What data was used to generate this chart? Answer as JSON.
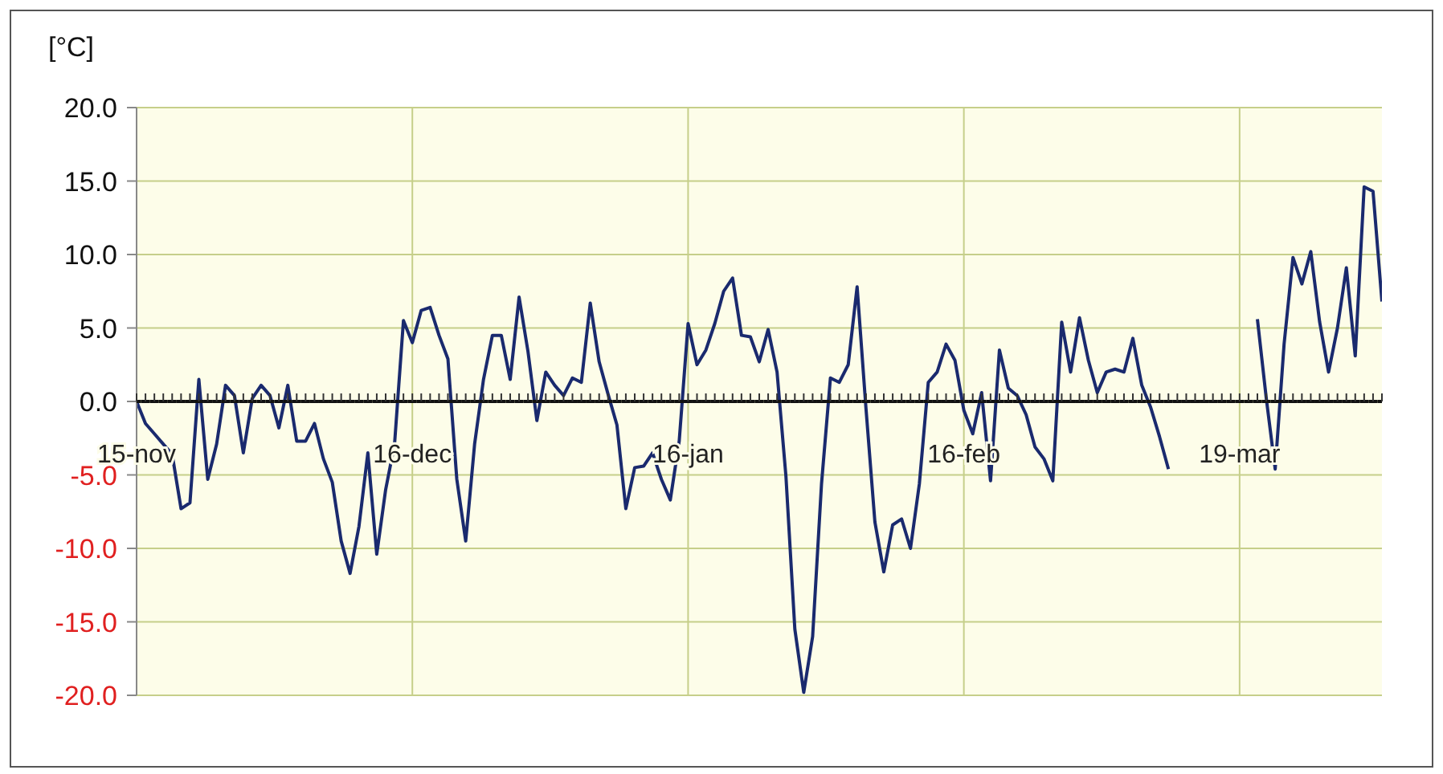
{
  "chart_data": {
    "type": "line",
    "ylabel": "[°C]",
    "categories": [
      "15-nov",
      null,
      null,
      null,
      null,
      null,
      null,
      null,
      null,
      null,
      null,
      null,
      null,
      null,
      null,
      null,
      null,
      null,
      null,
      null,
      null,
      null,
      null,
      null,
      null,
      null,
      null,
      null,
      null,
      null,
      null,
      "16-dec",
      null,
      null,
      null,
      null,
      null,
      null,
      null,
      null,
      null,
      null,
      null,
      null,
      null,
      null,
      null,
      null,
      null,
      null,
      null,
      null,
      null,
      null,
      null,
      null,
      null,
      null,
      null,
      null,
      null,
      null,
      "16-jan",
      null,
      null,
      null,
      null,
      null,
      null,
      null,
      null,
      null,
      null,
      null,
      null,
      null,
      null,
      null,
      null,
      null,
      null,
      null,
      null,
      null,
      null,
      null,
      null,
      null,
      null,
      null,
      null,
      null,
      null,
      "16-feb",
      null,
      null,
      null,
      null,
      null,
      null,
      null,
      null,
      null,
      null,
      null,
      null,
      null,
      null,
      null,
      null,
      null,
      null,
      null,
      null,
      null,
      null,
      null,
      null,
      null,
      null,
      null,
      null,
      null,
      null,
      "19-mar",
      null,
      null,
      null,
      null,
      null,
      null,
      null,
      null,
      null,
      null,
      null,
      null,
      null,
      null,
      null,
      null
    ],
    "series": [
      {
        "color": "#1a2a6e",
        "values": [
          0,
          -1.5,
          -2.2,
          -2.9,
          -3.6,
          -7.3,
          -6.9,
          1.5,
          -5.3,
          -2.9,
          1.1,
          0.4,
          -3.5,
          0.2,
          1.1,
          0.4,
          -1.8,
          1.1,
          -2.7,
          -2.7,
          -1.5,
          -3.9,
          -5.5,
          -9.5,
          -11.7,
          -8.5,
          -3.5,
          -10.4,
          -6,
          -2.9,
          5.5,
          4,
          6.2,
          6.4,
          4.5,
          2.9,
          -5.3,
          -9.5,
          -2.9,
          1.5,
          4.5,
          4.5,
          1.5,
          7.1,
          3.4,
          -1.3,
          2,
          1.1,
          0.4,
          1.6,
          1.3,
          6.7,
          2.7,
          0.5,
          -1.6,
          -7.3,
          -4.5,
          -4.4,
          -3.5,
          -5.3,
          -6.7,
          -2.7,
          5.3,
          2.5,
          3.5,
          5.3,
          7.5,
          8.4,
          4.5,
          4.4,
          2.7,
          4.9,
          2,
          -5.1,
          -15.5,
          -19.8,
          -16,
          -5.6,
          1.6,
          1.3,
          2.5,
          7.8,
          -0.5,
          -8.2,
          -11.6,
          -8.4,
          -8,
          -10,
          -5.6,
          1.3,
          2,
          3.9,
          2.8,
          -0.6,
          -2.2,
          0.6,
          -5.4,
          3.5,
          0.9,
          0.4,
          -0.9,
          -3.1,
          -3.9,
          -5.4,
          5.4,
          2,
          5.7,
          2.8,
          0.6,
          2,
          2.2,
          2,
          4.3,
          1.1,
          -0.4,
          -2.4,
          -4.6,
          null,
          null,
          null,
          null,
          null,
          null,
          null,
          null,
          null,
          5.6,
          0.2,
          -4.6,
          3.9,
          9.8,
          8,
          10.2,
          5.4,
          2,
          5,
          9.1,
          3.1,
          14.6,
          14.3,
          6.8
        ]
      }
    ],
    "ylim": [
      -20,
      20
    ],
    "yticks": [
      {
        "value": -20,
        "label": "-20.0"
      },
      {
        "value": -15,
        "label": "-15.0"
      },
      {
        "value": -10,
        "label": "-10.0"
      },
      {
        "value": -5,
        "label": "-5.0"
      },
      {
        "value": 0,
        "label": "0.0"
      },
      {
        "value": 5,
        "label": "5.0"
      },
      {
        "value": 10,
        "label": "10.0"
      },
      {
        "value": 15,
        "label": "15.0"
      },
      {
        "value": 20,
        "label": "20.0"
      }
    ],
    "grid": true,
    "marker": "none",
    "line_style": "solid"
  }
}
